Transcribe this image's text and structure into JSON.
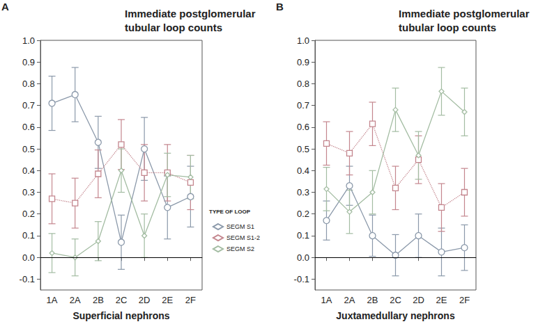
{
  "chart_data": [
    {
      "type": "line",
      "panel_label": "A",
      "title": "Immediate postglomerular\ntubular loop counts",
      "x_label": "Superficial nephrons",
      "categories": [
        "1A",
        "2A",
        "2B",
        "2C",
        "2D",
        "2E",
        "2F"
      ],
      "ylim": [
        -0.15,
        1.0
      ],
      "yticks": [
        -0.1,
        {
          "value": 0,
          "label": "0.0"
        },
        0.1,
        0.2,
        0.3,
        0.4,
        0.5,
        0.6,
        0.7,
        0.8,
        0.9,
        {
          "value": 1,
          "label": "1.0"
        }
      ],
      "hlines": [
        0
      ],
      "legend": "right",
      "legend_title": "TYPE OF LOOP",
      "grid": false,
      "series": [
        {
          "name": "SEGM S1",
          "color": "#8b99aa",
          "marker": "circle",
          "line_style": "solid",
          "values": [
            0.71,
            0.75,
            0.53,
            0.07,
            0.5,
            0.23,
            0.28
          ],
          "errors": [
            0.125,
            0.125,
            0.12,
            0.125,
            0.145,
            0.145,
            0.14
          ]
        },
        {
          "name": "SEGM S1-2",
          "color": "#c4868e",
          "marker": "square",
          "line_style": "dotted",
          "values": [
            0.27,
            0.25,
            0.385,
            0.52,
            0.39,
            0.39,
            0.345
          ],
          "errors": [
            0.115,
            0.115,
            0.11,
            0.115,
            0.13,
            0.13,
            0.125
          ]
        },
        {
          "name": "SEGM S2",
          "color": "#a3bca2",
          "marker": "diamond",
          "line_style": "solid",
          "values": [
            0.02,
            0.0,
            0.075,
            0.4,
            0.1,
            0.38,
            0.37
          ],
          "errors": [
            0.09,
            0.085,
            0.09,
            0.1,
            0.1,
            0.1,
            0.1
          ]
        }
      ]
    },
    {
      "type": "line",
      "panel_label": "B",
      "title": "Immediate postglomerular\ntubular loop counts",
      "x_label": "Juxtamedullary nephrons",
      "categories": [
        "1A",
        "2A",
        "2B",
        "2C",
        "2D",
        "2E",
        "2F"
      ],
      "ylim": [
        -0.15,
        1.0
      ],
      "yticks": [
        -0.1,
        {
          "value": 0,
          "label": "0.0"
        },
        0.1,
        0.2,
        0.3,
        0.4,
        0.5,
        0.6,
        0.7,
        0.8,
        0.9,
        {
          "value": 1,
          "label": "1.0"
        }
      ],
      "hlines": [
        0
      ],
      "grid": false,
      "series": [
        {
          "name": "SEGM S1",
          "color": "#8b99aa",
          "marker": "circle",
          "line_style": "solid",
          "values": [
            0.17,
            0.33,
            0.1,
            0.01,
            0.1,
            0.025,
            0.045
          ],
          "errors": [
            0.09,
            0.09,
            0.095,
            0.095,
            0.1,
            0.11,
            0.105
          ]
        },
        {
          "name": "SEGM S1-2",
          "color": "#c4868e",
          "marker": "square",
          "line_style": "dotted",
          "values": [
            0.525,
            0.48,
            0.615,
            0.32,
            0.45,
            0.23,
            0.3
          ],
          "errors": [
            0.1,
            0.1,
            0.1,
            0.1,
            0.11,
            0.11,
            0.11
          ]
        },
        {
          "name": "SEGM S2",
          "color": "#a3bca2",
          "marker": "diamond",
          "line_style": "solid",
          "values": [
            0.315,
            0.21,
            0.3,
            0.68,
            0.47,
            0.765,
            0.67
          ],
          "errors": [
            0.1,
            0.1,
            0.1,
            0.1,
            0.11,
            0.11,
            0.11
          ]
        }
      ]
    }
  ]
}
